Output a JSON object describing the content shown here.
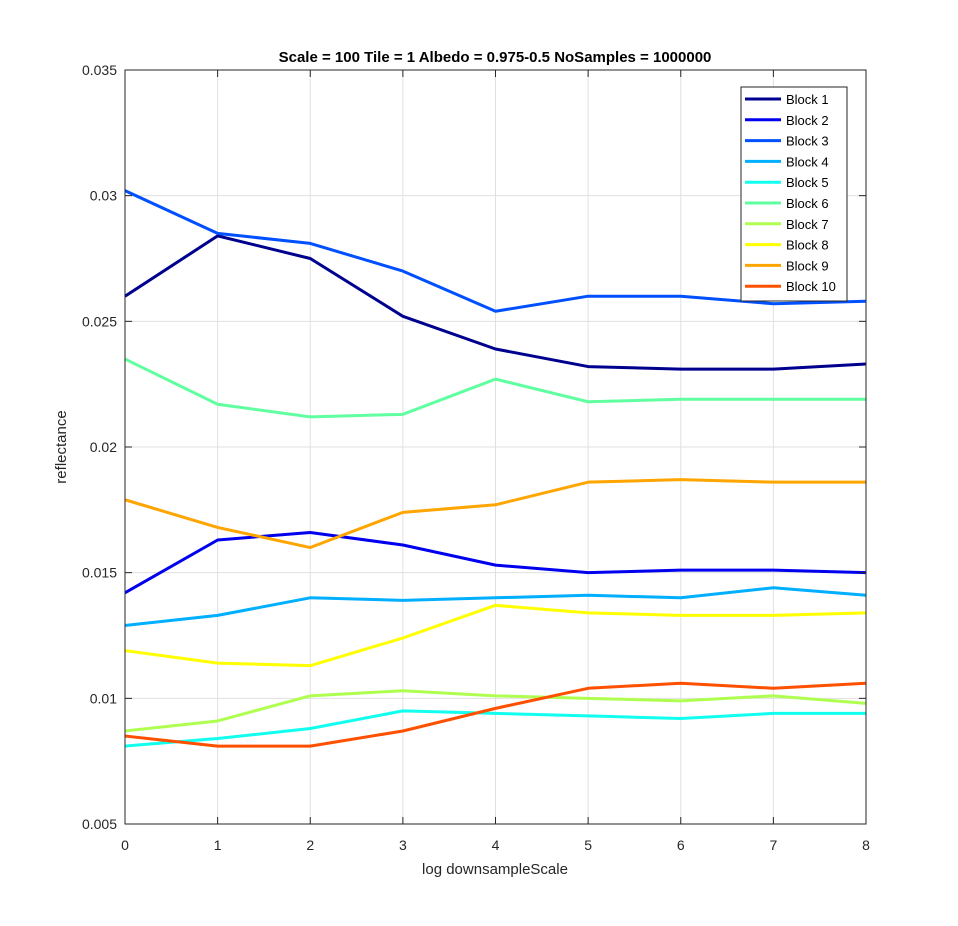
{
  "chart_data": {
    "type": "line",
    "title": "Scale = 100 Tile = 1 Albedo = 0.975-0.5 NoSamples = 1000000",
    "xlabel": "log downsampleScale",
    "ylabel": "reflectance",
    "xlim": [
      0,
      8
    ],
    "ylim": [
      0.005,
      0.035
    ],
    "x": [
      0,
      1,
      2,
      3,
      4,
      5,
      6,
      7,
      8
    ],
    "xticks": [
      "0",
      "1",
      "2",
      "3",
      "4",
      "5",
      "6",
      "7",
      "8"
    ],
    "yticks": [
      "0.005",
      "0.01",
      "0.015",
      "0.02",
      "0.025",
      "0.03",
      "0.035"
    ],
    "grid": true,
    "legend_position": "top-right",
    "series": [
      {
        "name": "Block 1",
        "color": "#00008F",
        "values": [
          0.026,
          0.0284,
          0.0275,
          0.0252,
          0.0239,
          0.0232,
          0.0231,
          0.0231,
          0.0233
        ]
      },
      {
        "name": "Block 2",
        "color": "#0000EF",
        "values": [
          0.0142,
          0.0163,
          0.0166,
          0.0161,
          0.0153,
          0.015,
          0.0151,
          0.0151,
          0.015
        ]
      },
      {
        "name": "Block 3",
        "color": "#0050FF",
        "values": [
          0.0302,
          0.0285,
          0.0281,
          0.027,
          0.0254,
          0.026,
          0.026,
          0.0257,
          0.0258
        ]
      },
      {
        "name": "Block 4",
        "color": "#00AFFF",
        "values": [
          0.0129,
          0.0133,
          0.014,
          0.0139,
          0.014,
          0.0141,
          0.014,
          0.0144,
          0.0141
        ]
      },
      {
        "name": "Block 5",
        "color": "#10FFEF",
        "values": [
          0.0081,
          0.0084,
          0.0088,
          0.0095,
          0.0094,
          0.0093,
          0.0092,
          0.0094,
          0.0094
        ]
      },
      {
        "name": "Block 6",
        "color": "#60FFA0",
        "values": [
          0.0235,
          0.0217,
          0.0212,
          0.0213,
          0.0227,
          0.0218,
          0.0219,
          0.0219,
          0.0219
        ]
      },
      {
        "name": "Block 7",
        "color": "#AFFF50",
        "values": [
          0.0087,
          0.0091,
          0.0101,
          0.0103,
          0.0101,
          0.01,
          0.0099,
          0.0101,
          0.0098
        ]
      },
      {
        "name": "Block 8",
        "color": "#FFFF00",
        "values": [
          0.0119,
          0.0114,
          0.0113,
          0.0124,
          0.0137,
          0.0134,
          0.0133,
          0.0133,
          0.0134
        ]
      },
      {
        "name": "Block 9",
        "color": "#FFA500",
        "values": [
          0.0179,
          0.0168,
          0.016,
          0.0174,
          0.0177,
          0.0186,
          0.0187,
          0.0186,
          0.0186
        ]
      },
      {
        "name": "Block 10",
        "color": "#FF5000",
        "values": [
          0.0085,
          0.0081,
          0.0081,
          0.0087,
          0.0096,
          0.0104,
          0.0106,
          0.0104,
          0.0106
        ]
      }
    ]
  }
}
